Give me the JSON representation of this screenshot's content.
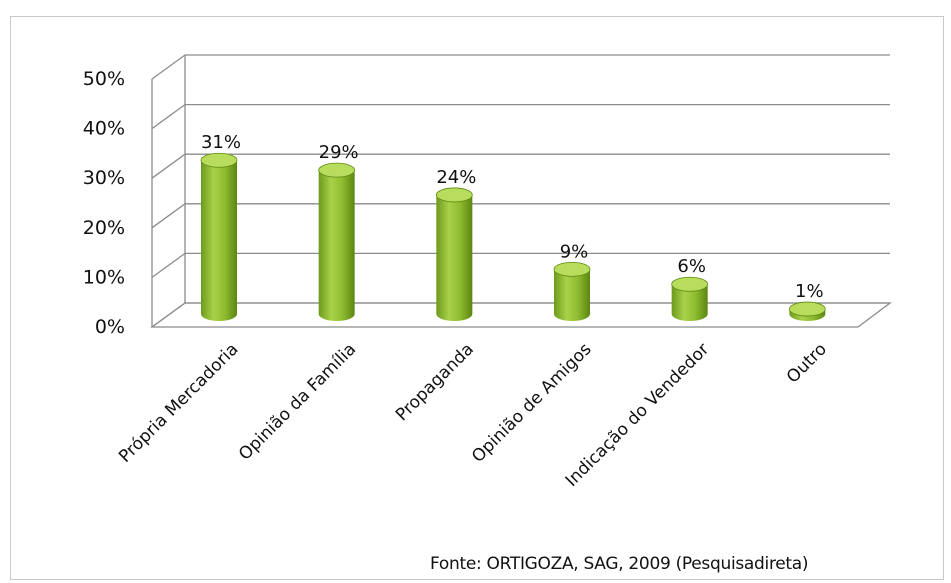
{
  "chart_data": {
    "type": "bar",
    "style": "3d-cylinder",
    "categories": [
      "Própria Mercadoria",
      "Opinião da Família",
      "Propaganda",
      "Opinião de Amigos",
      "Indicação do Vendedor",
      "Outro"
    ],
    "values": [
      31,
      29,
      24,
      9,
      6,
      1
    ],
    "data_labels": [
      "31%",
      "29%",
      "24%",
      "9%",
      "6%",
      "1%"
    ],
    "y_ticks": [
      "0%",
      "10%",
      "20%",
      "30%",
      "40%",
      "50%"
    ],
    "ylim": [
      0,
      50
    ],
    "grid": true,
    "legend": "none",
    "colors": {
      "bar": "#8dba2f",
      "bar_dark": "#5f8a14",
      "bar_light": "#b8dc5c",
      "grid": "#8c8c8c"
    }
  },
  "source": "Fonte: ORTIGOZA, SAG, 2009 (Pesquisadireta)"
}
